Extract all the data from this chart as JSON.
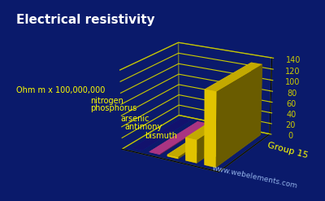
{
  "title": "Electrical resistivity",
  "ylabel": "Ohm m x 100,000,000",
  "xlabel": "Group 15",
  "background_color": "#0a1a6b",
  "elements": [
    "nitrogen",
    "phosphorus",
    "arsenic",
    "antimony",
    "bismuth"
  ],
  "values": [
    0.0,
    1.0,
    3.3,
    41.0,
    130.0
  ],
  "ylim": [
    0,
    140
  ],
  "yticks": [
    0,
    20,
    40,
    60,
    80,
    100,
    120,
    140
  ],
  "bar_color_top": "#ffdd00",
  "bar_color_side": "#cc9900",
  "bar_color_front": "#ffcc00",
  "grid_color": "#cccc00",
  "title_color": "#ffffff",
  "label_color": "#ffff00",
  "watermark": "www.webelements.com",
  "watermark_color": "#aaccff"
}
